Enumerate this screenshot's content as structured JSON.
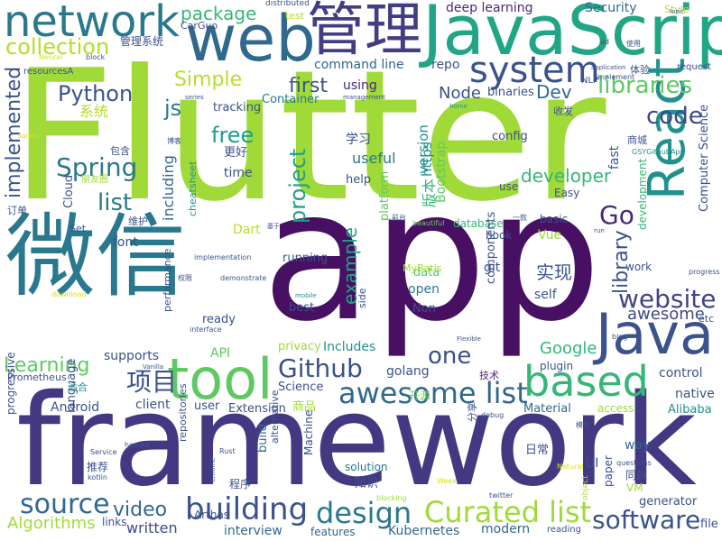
{
  "palette": [
    "#440154",
    "#482878",
    "#3e4989",
    "#31688e",
    "#26828e",
    "#1f9e89",
    "#35b779",
    "#6ece58",
    "#b5de2b",
    "#fde725"
  ],
  "words": [
    {
      "text": "Flutter",
      "color": "#a0da39"
    },
    {
      "text": "app",
      "color": "#471063"
    },
    {
      "text": "framework",
      "color": "#433982"
    },
    {
      "text": "微信",
      "color": "#2a788e"
    },
    {
      "text": "JavaScript",
      "color": "#21a685"
    },
    {
      "text": "web",
      "color": "#31688e"
    },
    {
      "text": "管理",
      "color": "#433d84"
    },
    {
      "text": "network",
      "color": "#2a788e"
    },
    {
      "text": "React",
      "color": "#21918c"
    },
    {
      "text": "Java",
      "color": "#3b528b"
    },
    {
      "text": "tool",
      "color": "#5ec962"
    },
    {
      "text": "system",
      "color": "#3b528b"
    },
    {
      "text": "based",
      "color": "#35b779"
    },
    {
      "text": "awesome list",
      "color": "#31688e"
    },
    {
      "text": "building",
      "color": "#3b528b"
    },
    {
      "text": "design",
      "color": "#2a788e"
    },
    {
      "text": "Curated list",
      "color": "#9fda3a"
    },
    {
      "text": "source",
      "color": "#31688e"
    },
    {
      "text": "software",
      "color": "#3b528b"
    },
    {
      "text": "Github",
      "color": "#3b528b"
    },
    {
      "text": "website",
      "color": "#414487"
    },
    {
      "text": "Python",
      "color": "#3b528b"
    },
    {
      "text": "Spring",
      "color": "#2a788e"
    },
    {
      "text": "collection",
      "color": "#b5de2b"
    },
    {
      "text": "libraries",
      "color": "#5ec962"
    },
    {
      "text": "code",
      "color": "#3e4989"
    },
    {
      "text": "Go",
      "color": "#482878"
    },
    {
      "text": "项目",
      "color": "#3b528b"
    },
    {
      "text": "project",
      "color": "#1f9e89"
    },
    {
      "text": "implemented",
      "color": "#3b528b"
    },
    {
      "text": "free",
      "color": "#1f9e89"
    },
    {
      "text": "list",
      "color": "#2a788e"
    },
    {
      "text": "one",
      "color": "#3b528b"
    },
    {
      "text": "Simple",
      "color": "#b5de2b"
    },
    {
      "text": "Learning",
      "color": "#5ec962"
    },
    {
      "text": "library",
      "color": "#3b528b"
    },
    {
      "text": "package",
      "color": "#35b779"
    },
    {
      "text": "example",
      "color": "#21a685"
    },
    {
      "text": "video",
      "color": "#31688e"
    },
    {
      "text": "js",
      "color": "#2a788e"
    },
    {
      "text": "Dev",
      "color": "#31688e"
    },
    {
      "text": "first",
      "color": "#3b528b"
    },
    {
      "text": "Node",
      "color": "#3b528b"
    },
    {
      "text": "developer",
      "color": "#35b779"
    },
    {
      "text": "实现",
      "color": "#3b528b"
    },
    {
      "text": "Google",
      "color": "#35b779"
    },
    {
      "text": "awesome",
      "color": "#3e4989"
    },
    {
      "text": "Algorithms",
      "color": "#a0da39"
    },
    {
      "text": "written",
      "color": "#3e4989"
    },
    {
      "text": "Kubernetes",
      "color": "#31688e"
    },
    {
      "text": "interview",
      "color": "#31688e"
    },
    {
      "text": "Security",
      "color": "#31688e"
    },
    {
      "text": "deep learning",
      "color": "#482878"
    },
    {
      "text": "command line",
      "color": "#31688e"
    },
    {
      "text": "repo",
      "color": "#3b528b"
    },
    {
      "text": "Container",
      "color": "#2a788e"
    },
    {
      "text": "using",
      "color": "#482878"
    },
    {
      "text": "binaries",
      "color": "#3b528b"
    },
    {
      "text": "version",
      "color": "#21918c"
    },
    {
      "text": "系统",
      "color": "#b5de2b"
    },
    {
      "text": "tracking",
      "color": "#3b528b"
    },
    {
      "text": "config",
      "color": "#3b528b"
    },
    {
      "text": "学习",
      "color": "#3b528b"
    },
    {
      "text": "useful",
      "color": "#2a788e"
    },
    {
      "text": "including",
      "color": "#31688e"
    },
    {
      "text": "time",
      "color": "#3b528b"
    },
    {
      "text": "help",
      "color": "#3b528b"
    },
    {
      "text": "platform",
      "color": "#5ec962"
    },
    {
      "text": "Bootstrap",
      "color": "#5ec962"
    },
    {
      "text": "https",
      "color": "#21918c"
    },
    {
      "text": "版本",
      "color": "#35b779"
    },
    {
      "text": "data",
      "color": "#5ec962"
    },
    {
      "text": "open",
      "color": "#2a788e"
    },
    {
      "text": "best",
      "color": "#3b528b"
    },
    {
      "text": "running",
      "color": "#3b528b"
    },
    {
      "text": "ready",
      "color": "#3b528b"
    },
    {
      "text": "API",
      "color": "#5ec962"
    },
    {
      "text": "Includes",
      "color": "#21918c"
    },
    {
      "text": "supports",
      "color": "#3b528b"
    },
    {
      "text": "client",
      "color": "#3b528b"
    },
    {
      "text": "Android",
      "color": "#3b528b"
    },
    {
      "text": "user",
      "color": "#3b528b"
    },
    {
      "text": "Extension",
      "color": "#3b528b"
    },
    {
      "text": "golang",
      "color": "#3b528b"
    },
    {
      "text": "Material",
      "color": "#31688e"
    },
    {
      "text": "Alibaba",
      "color": "#21918c"
    },
    {
      "text": "native",
      "color": "#3b528b"
    },
    {
      "text": "control",
      "color": "#3b528b"
    },
    {
      "text": "plugin",
      "color": "#3b528b"
    },
    {
      "text": "way",
      "color": "#31688e"
    },
    {
      "text": "generator",
      "color": "#3b528b"
    },
    {
      "text": "file",
      "color": "#3b528b"
    },
    {
      "text": "modern",
      "color": "#31688e"
    },
    {
      "text": "features",
      "color": "#31688e"
    },
    {
      "text": "Science",
      "color": "#3b528b"
    },
    {
      "text": "商品",
      "color": "#a0da39"
    },
    {
      "text": "开源",
      "color": "#6ece58"
    },
    {
      "text": "日常",
      "color": "#3b528b"
    },
    {
      "text": "知识",
      "color": "#3b528b"
    },
    {
      "text": "solution",
      "color": "#2a788e"
    },
    {
      "text": "language",
      "color": "#3b528b"
    },
    {
      "text": "Prometheus",
      "color": "#3b528b"
    },
    {
      "text": "适合",
      "color": "#21918c"
    },
    {
      "text": "技术",
      "color": "#482878"
    },
    {
      "text": "font",
      "color": "#3b528b"
    },
    {
      "text": "Set",
      "color": "#3b528b"
    },
    {
      "text": "Dart",
      "color": "#b5de2b"
    },
    {
      "text": "Cloud",
      "color": "#3b528b"
    },
    {
      "text": "更好",
      "color": "#3b528b"
    },
    {
      "text": "cheatsheet",
      "color": "#21918c"
    },
    {
      "text": "Easy",
      "color": "#3b528b"
    },
    {
      "text": "use",
      "color": "#3b528b"
    },
    {
      "text": "basic",
      "color": "#3b528b"
    },
    {
      "text": "database",
      "color": "#35b779"
    },
    {
      "text": "Vue",
      "color": "#a0da39"
    },
    {
      "text": "book",
      "color": "#3b528b"
    },
    {
      "text": "MyBatis",
      "color": "#a0da39"
    },
    {
      "text": "git",
      "color": "#3b528b"
    },
    {
      "text": "components",
      "color": "#3b528b"
    },
    {
      "text": "self",
      "color": "#3b528b"
    },
    {
      "text": "Non",
      "color": "#3b528b"
    },
    {
      "text": "side",
      "color": "#3b528b"
    },
    {
      "text": "privacy",
      "color": "#a0da39"
    },
    {
      "text": "work",
      "color": "#3b528b"
    },
    {
      "text": "development",
      "color": "#35b779"
    },
    {
      "text": "fast",
      "color": "#3b528b"
    },
    {
      "text": "Computer Science",
      "color": "#3b528b"
    },
    {
      "text": "etc",
      "color": "#3b528b"
    },
    {
      "text": "VM",
      "color": "#a0da39"
    },
    {
      "text": "paper",
      "color": "#3b528b"
    },
    {
      "text": "同款",
      "color": "#3b528b"
    },
    {
      "text": "UI",
      "color": "#3b528b"
    },
    {
      "text": "access",
      "color": "#a0da39"
    },
    {
      "text": "Machine",
      "color": "#3b528b"
    },
    {
      "text": "alternative",
      "color": "#3b528b"
    },
    {
      "text": "build",
      "color": "#31688e"
    },
    {
      "text": "程序",
      "color": "#3b528b"
    },
    {
      "text": "推荐",
      "color": "#3b528b"
    },
    {
      "text": "links",
      "color": "#3b528b"
    },
    {
      "text": "Arthas",
      "color": "#3b528b"
    },
    {
      "text": "repositories",
      "color": "#3b528b"
    },
    {
      "text": "progressive",
      "color": "#3b528b"
    },
    {
      "text": "管理系统",
      "color": "#3b528b"
    },
    {
      "text": "CarGuo",
      "color": "#3b528b"
    },
    {
      "text": "distributed",
      "color": "#3b528b"
    },
    {
      "text": "test",
      "color": "#b5de2b"
    },
    {
      "text": "Style",
      "color": "#b5de2b"
    },
    {
      "text": "使用",
      "color": "#3b528b"
    },
    {
      "text": "ad",
      "color": "#3b528b"
    },
    {
      "text": "application",
      "color": "#3b528b"
    },
    {
      "text": "体验",
      "color": "#3b528b"
    },
    {
      "text": "request",
      "color": "#3b528b"
    },
    {
      "text": "NLP",
      "color": "#3b528b"
    },
    {
      "text": "implement",
      "color": "#3b528b"
    },
    {
      "text": "收发",
      "color": "#3b528b"
    },
    {
      "text": "商城",
      "color": "#3b528b"
    },
    {
      "text": "GSYGithubApp",
      "color": "#21918c"
    },
    {
      "text": "resourcesA",
      "color": "#3b528b"
    },
    {
      "text": "block",
      "color": "#3b528b"
    },
    {
      "text": "Neural",
      "color": "#d8e219"
    },
    {
      "text": "series",
      "color": "#3b528b"
    },
    {
      "text": "management",
      "color": "#3b528b"
    },
    {
      "text": "home",
      "color": "#21918c"
    },
    {
      "text": "博客",
      "color": "#3b528b"
    },
    {
      "text": "包含",
      "color": "#3b528b"
    },
    {
      "text": "朋友圈",
      "color": "#a0da39"
    },
    {
      "text": "Sqlpro",
      "color": "#d8e219"
    },
    {
      "text": "订单",
      "color": "#3b528b"
    },
    {
      "text": "维护",
      "color": "#3b528b"
    },
    {
      "text": "基于",
      "color": "#3b528b"
    },
    {
      "text": "前台",
      "color": "#3b528b"
    },
    {
      "text": "一款",
      "color": "#3b528b"
    },
    {
      "text": "beautiful",
      "color": "#6ece58"
    },
    {
      "text": "run",
      "color": "#3b528b"
    },
    {
      "text": "implementation",
      "color": "#3b528b"
    },
    {
      "text": "权限",
      "color": "#3b528b"
    },
    {
      "text": "demonstrate",
      "color": "#3b528b"
    },
    {
      "text": "progress",
      "color": "#3b528b"
    },
    {
      "text": "download",
      "color": "#d8e219"
    },
    {
      "text": "mobile",
      "color": "#21918c"
    },
    {
      "text": "interface",
      "color": "#3b528b"
    },
    {
      "text": "performance",
      "color": "#3b528b"
    },
    {
      "text": "blog",
      "color": "#3b528b"
    },
    {
      "text": "Flexible",
      "color": "#3b528b"
    },
    {
      "text": "Vanilla",
      "color": "#3b528b"
    },
    {
      "text": "debug",
      "color": "#3b528b"
    },
    {
      "text": "模块",
      "color": "#3b528b"
    },
    {
      "text": "questions",
      "color": "#3b528b"
    },
    {
      "text": "Service",
      "color": "#3b528b"
    },
    {
      "text": "hosted",
      "color": "#3b528b"
    },
    {
      "text": "Rust",
      "color": "#3b528b"
    },
    {
      "text": "kotlin",
      "color": "#3b528b"
    },
    {
      "text": "Chrome",
      "color": "#3b528b"
    },
    {
      "text": "blocking",
      "color": "#a0da39"
    },
    {
      "text": "Weex",
      "color": "#d8e219"
    },
    {
      "text": "twitter",
      "color": "#3b528b"
    },
    {
      "text": "Natural",
      "color": "#d8e219"
    },
    {
      "text": "object",
      "color": "#b5de2b"
    },
    {
      "text": "reading",
      "color": "#3b528b"
    },
    {
      "text": "分享",
      "color": "#3b528b"
    },
    {
      "text": "Ionic",
      "color": "#3b528b"
    }
  ]
}
